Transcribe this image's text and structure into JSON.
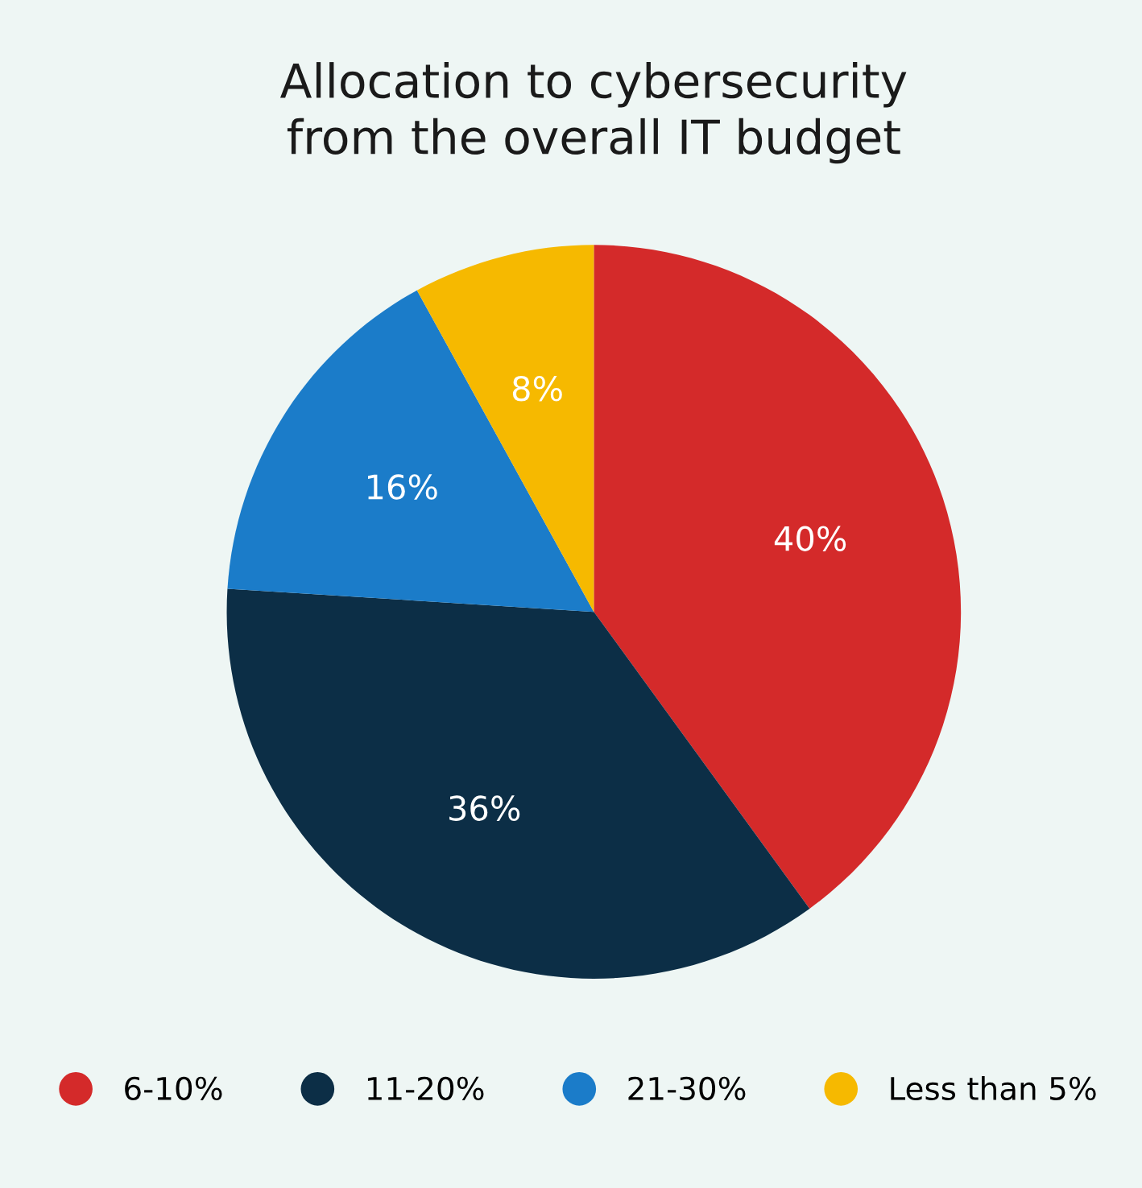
{
  "chart_data": {
    "type": "pie",
    "title": "Allocation to cybersecurity\nfrom the overall IT budget",
    "categories": [
      "6-10%",
      "11-20%",
      "21-30%",
      "Less than 5%"
    ],
    "values": [
      40,
      36,
      16,
      8
    ],
    "colors": [
      "#d42a2a",
      "#0c2e46",
      "#1b7cc9",
      "#f6b900"
    ],
    "value_labels": [
      "40%",
      "36%",
      "16%",
      "8%"
    ],
    "legend": "bottom"
  }
}
